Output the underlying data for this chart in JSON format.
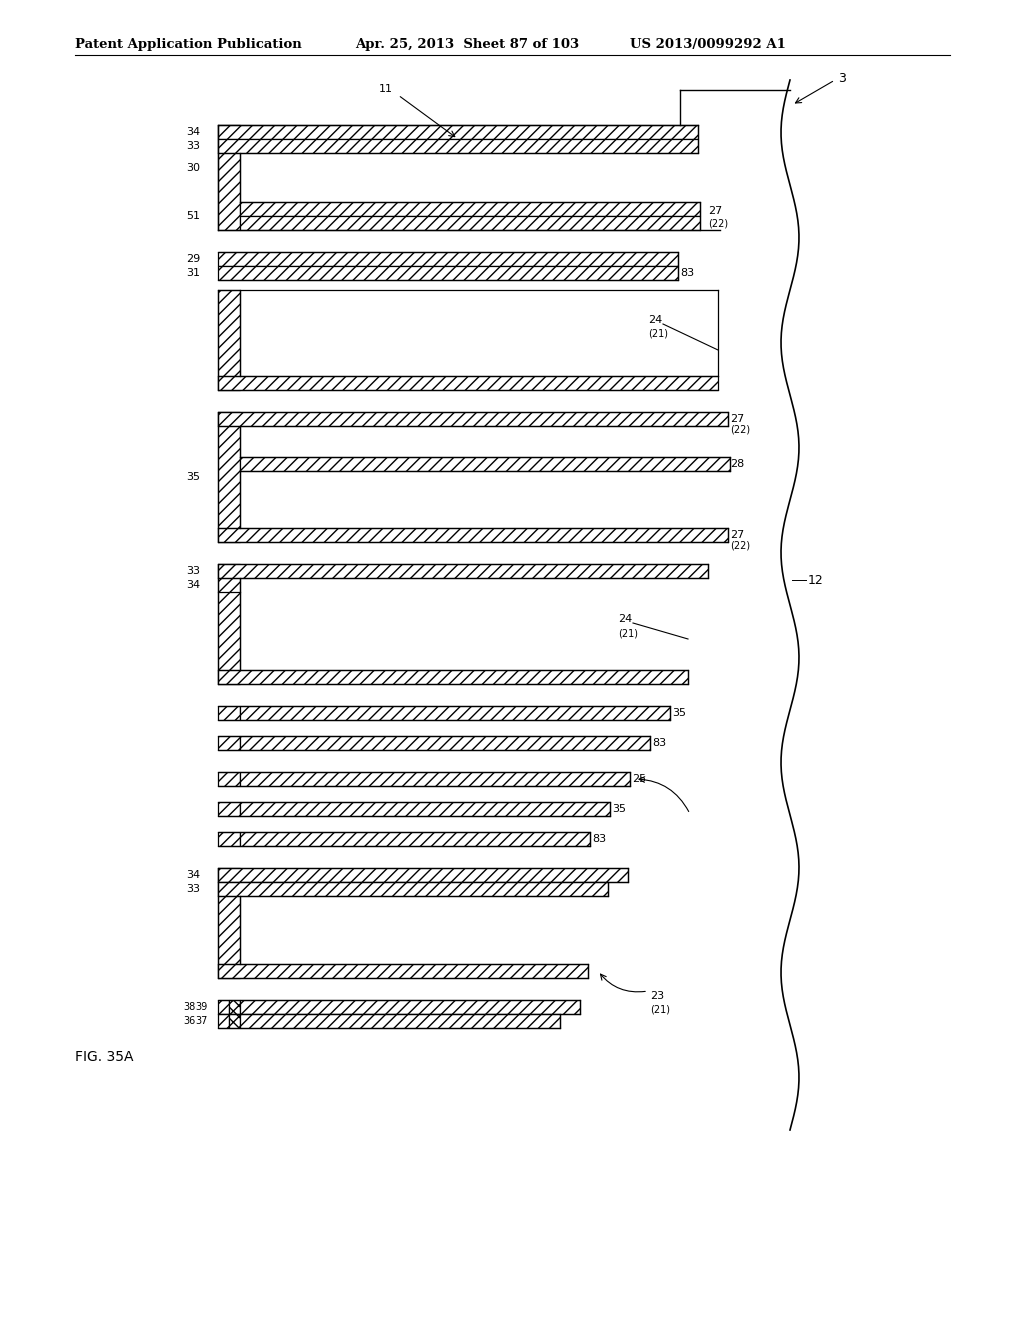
{
  "title_left": "Patent Application Publication",
  "title_mid": "Apr. 25, 2013  Sheet 87 of 103",
  "title_right": "US 2013/0099292 A1",
  "fig_label": "FIG. 35A",
  "background": "#ffffff"
}
